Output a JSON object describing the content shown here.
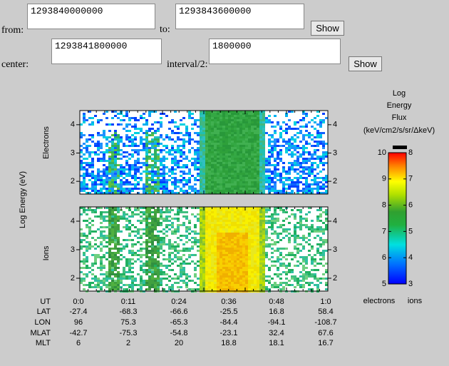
{
  "form": {
    "from_label": "from:",
    "from_value": "1293840000000",
    "to_label": "to:",
    "to_value": "1293843600000",
    "show_1": "Show",
    "center_label": "center:",
    "center_value": "1293841800000",
    "interval_label": "interval/2:",
    "interval_value": "1800000",
    "show_2": "Show"
  },
  "plot": {
    "y_axis_label": "Log Energy (eV)",
    "panels": [
      {
        "name": "Electrons",
        "ylim": [
          1.55,
          4.5
        ],
        "yticks": [
          2,
          3,
          4
        ]
      },
      {
        "name": "Ions",
        "ylim": [
          1.55,
          4.5
        ],
        "yticks": [
          2,
          3,
          4
        ]
      }
    ]
  },
  "colorbar": {
    "title": [
      "Log",
      "Energy",
      "Flux",
      "(keV/cm2/s/sr/ΔkeV)"
    ],
    "electrons_lim": [
      5,
      10
    ],
    "electrons_ticks": [
      5,
      6,
      7,
      8,
      9,
      10
    ],
    "ions_lim": [
      3,
      8
    ],
    "ions_ticks": [
      3,
      4,
      5,
      6,
      7,
      8
    ],
    "electrons_label": "electrons",
    "ions_label": "ions"
  },
  "table": {
    "rows": [
      [
        "UT",
        "0:0",
        "0:11",
        "0:24",
        "0:36",
        "0:48",
        "1:0"
      ],
      [
        "LAT",
        "-27.4",
        "-68.3",
        "-66.6",
        "-25.5",
        "16.8",
        "58.4"
      ],
      [
        "LON",
        "96",
        "75.3",
        "-65.3",
        "-84.4",
        "-94.1",
        "-108.7"
      ],
      [
        "MLAT",
        "-42.7",
        "-75.3",
        "-54.8",
        "-23.1",
        "32.4",
        "67.6"
      ],
      [
        "MLT",
        "6",
        "2",
        "20",
        "18.8",
        "18.1",
        "16.7"
      ]
    ]
  }
}
